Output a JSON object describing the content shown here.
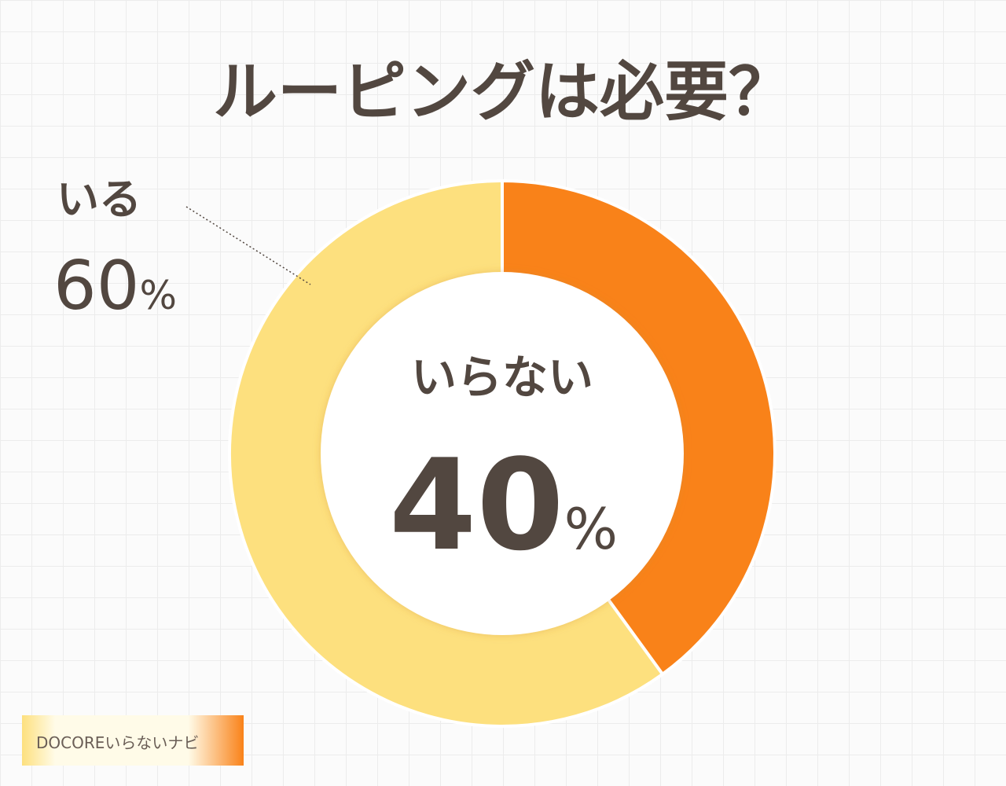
{
  "chart_data": {
    "type": "donut",
    "title": "ルーピングは必要？",
    "categories": [
      "いらない",
      "いる"
    ],
    "values": [
      40,
      60
    ],
    "value_labels": [
      "40%",
      "60%"
    ],
    "colors": [
      "#f98219",
      "#fde07e"
    ]
  },
  "watermark": "DOCOREいらないナビ"
}
